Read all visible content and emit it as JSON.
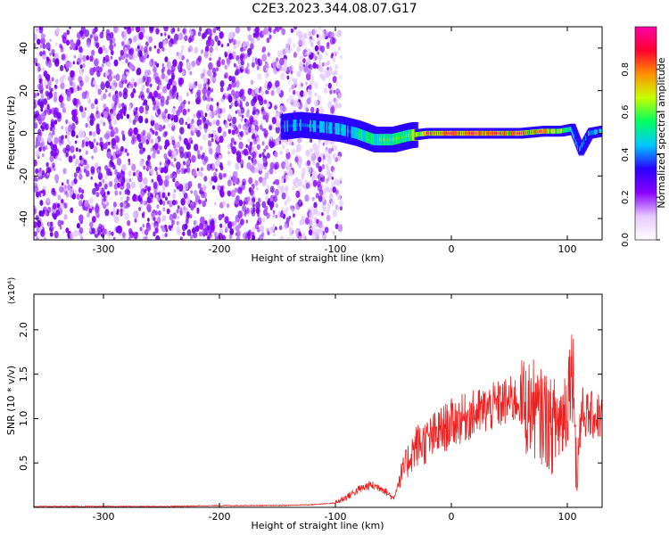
{
  "title": "C2E3.2023.344.08.07.G17",
  "chart_data": [
    {
      "type": "heatmap",
      "title": "C2E3.2023.344.08.07.G17",
      "xlabel": "Height of straight line (km)",
      "ylabel": "Frequency (Hz)",
      "xlim": [
        -360,
        130
      ],
      "ylim": [
        -50,
        50
      ],
      "xticks": [
        -300,
        -200,
        -100,
        0,
        100
      ],
      "yticks": [
        -40,
        -20,
        0,
        20,
        40
      ],
      "colorbar": {
        "label": "Normalized spectral amplitude",
        "range": [
          0.0,
          1.0
        ],
        "ticks": [
          "0.0",
          "0.2",
          "0.4",
          "0.6",
          "0.8"
        ],
        "colors": [
          "#ffffff",
          "#e6c8ff",
          "#8a00ff",
          "#2a00ff",
          "#00c8ff",
          "#00ff60",
          "#c8ff00",
          "#ff9000",
          "#ff0030",
          "#ff00aa"
        ]
      },
      "noise_region_x": [
        -360,
        -105
      ],
      "signal_track": [
        {
          "x": -145,
          "y": 3,
          "amp": 0.45
        },
        {
          "x": -130,
          "y": 4,
          "amp": 0.4
        },
        {
          "x": -110,
          "y": 3,
          "amp": 0.45
        },
        {
          "x": -95,
          "y": 2,
          "amp": 0.5
        },
        {
          "x": -80,
          "y": 0,
          "amp": 0.55
        },
        {
          "x": -65,
          "y": -3,
          "amp": 0.6
        },
        {
          "x": -50,
          "y": -3,
          "amp": 0.65
        },
        {
          "x": -35,
          "y": -1,
          "amp": 0.7
        },
        {
          "x": -20,
          "y": 0,
          "amp": 0.85
        },
        {
          "x": 0,
          "y": 0,
          "amp": 0.9
        },
        {
          "x": 20,
          "y": 0,
          "amp": 0.9
        },
        {
          "x": 40,
          "y": 0,
          "amp": 0.85
        },
        {
          "x": 60,
          "y": 0,
          "amp": 0.85
        },
        {
          "x": 80,
          "y": 1,
          "amp": 0.85
        },
        {
          "x": 95,
          "y": 1,
          "amp": 0.8
        },
        {
          "x": 105,
          "y": 2,
          "amp": 0.6
        },
        {
          "x": 112,
          "y": -8,
          "amp": 0.4
        },
        {
          "x": 120,
          "y": 0,
          "amp": 0.5
        },
        {
          "x": 130,
          "y": 1,
          "amp": 0.5
        }
      ]
    },
    {
      "type": "line",
      "xlabel": "Height of straight line (km)",
      "ylabel": "SNR (10 * v/v)",
      "y_multiplier": "(x10⁴)",
      "xlim": [
        -360,
        130
      ],
      "ylim": [
        0.0,
        2.4
      ],
      "xticks": [
        -300,
        -200,
        -100,
        0,
        100
      ],
      "yticks": [
        0.5,
        1.0,
        1.5,
        2.0
      ],
      "line_color": "#ee2020",
      "series": [
        {
          "x": [
            -360,
            -300,
            -250,
            -200,
            -150,
            -120,
            -100,
            -90,
            -80,
            -70,
            -60,
            -50,
            -45,
            -40,
            -35,
            -30,
            -25,
            -20,
            -15,
            -10,
            -5,
            0,
            10,
            20,
            30,
            40,
            50,
            60,
            65,
            70,
            75,
            80,
            85,
            90,
            95,
            100,
            103,
            106,
            108,
            112,
            118,
            125,
            130
          ],
          "y": [
            0.01,
            0.01,
            0.01,
            0.02,
            0.02,
            0.03,
            0.05,
            0.12,
            0.2,
            0.25,
            0.22,
            0.1,
            0.3,
            0.45,
            0.6,
            0.7,
            0.72,
            0.75,
            0.8,
            0.85,
            0.9,
            0.95,
            1.0,
            1.05,
            1.1,
            1.15,
            1.2,
            1.22,
            1.1,
            1.15,
            1.0,
            1.05,
            0.9,
            0.95,
            1.0,
            1.2,
            1.6,
            1.4,
            0.3,
            1.1,
            1.02,
            1.04,
            1.02
          ]
        }
      ]
    }
  ]
}
